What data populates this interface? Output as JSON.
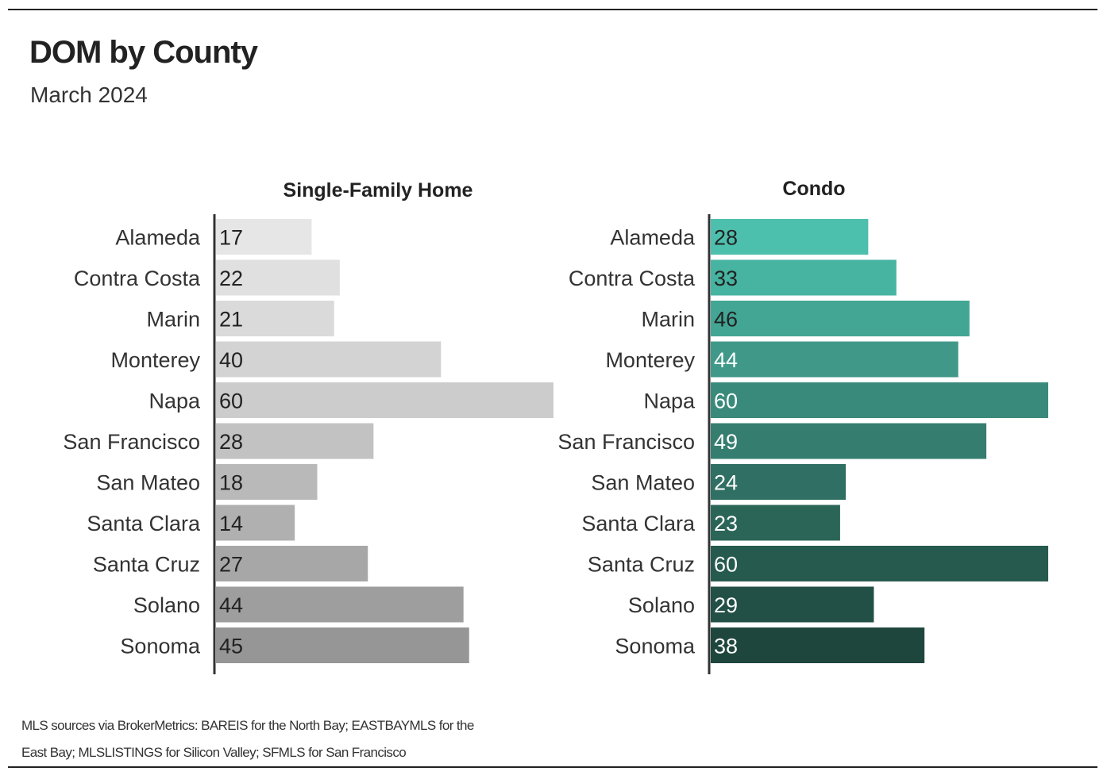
{
  "title": "DOM by County",
  "subtitle": "March 2024",
  "footnote": "MLS sources via BrokerMetrics: BAREIS for the North Bay; EASTBAYMLS for the East Bay; MLSLISTINGS for Silicon Valley; SFMLS for San Francisco",
  "chart_data": [
    {
      "type": "bar",
      "orientation": "horizontal",
      "title": "Single-Family Home",
      "categories": [
        "Alameda",
        "Contra Costa",
        "Marin",
        "Monterey",
        "Napa",
        "San Francisco",
        "San Mateo",
        "Santa Clara",
        "Santa Cruz",
        "Solano",
        "Sonoma"
      ],
      "values": [
        17,
        22,
        21,
        40,
        60,
        28,
        18,
        14,
        27,
        44,
        45
      ],
      "colors": [
        "#e6e6e6",
        "#e0e0e0",
        "#dadada",
        "#d3d3d3",
        "#cccccc",
        "#c2c2c2",
        "#b9b9b9",
        "#b0b0b0",
        "#a7a7a7",
        "#9e9e9e",
        "#969696"
      ],
      "label_colors": [
        "#222222",
        "#222222",
        "#222222",
        "#222222",
        "#222222",
        "#222222",
        "#222222",
        "#222222",
        "#222222",
        "#222222",
        "#222222"
      ],
      "xlim": [
        0,
        60
      ],
      "xlabel": "",
      "ylabel": ""
    },
    {
      "type": "bar",
      "orientation": "horizontal",
      "title": "Condo",
      "categories": [
        "Alameda",
        "Contra Costa",
        "Marin",
        "Monterey",
        "Napa",
        "San Francisco",
        "San Mateo",
        "Santa Clara",
        "Santa Cruz",
        "Solano",
        "Sonoma"
      ],
      "values": [
        28,
        33,
        46,
        44,
        60,
        49,
        24,
        23,
        60,
        29,
        38
      ],
      "colors": [
        "#4dbfad",
        "#47b3a1",
        "#43a594",
        "#3f9888",
        "#3a8a7b",
        "#357d6f",
        "#306f63",
        "#2b6558",
        "#275a4f",
        "#224f46",
        "#1e463d"
      ],
      "label_colors": [
        "#222222",
        "#222222",
        "#222222",
        "#ffffff",
        "#ffffff",
        "#ffffff",
        "#ffffff",
        "#ffffff",
        "#ffffff",
        "#ffffff",
        "#ffffff"
      ],
      "xlim": [
        0,
        60
      ],
      "xlabel": "",
      "ylabel": ""
    }
  ]
}
